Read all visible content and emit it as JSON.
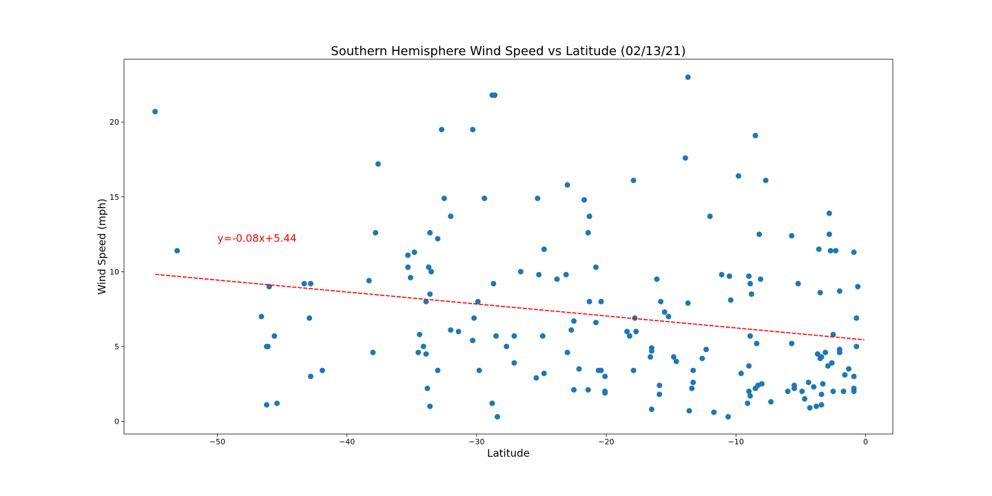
{
  "chart_data": {
    "type": "scatter",
    "title": "Southern Hemisphere Wind Speed vs Latitude (02/13/21)",
    "xlabel": "Latitude",
    "ylabel": "Wind Speed (mph)",
    "xlim": [
      -57.2,
      2.1
    ],
    "ylim": [
      -0.85,
      24.2
    ],
    "xticks": [
      -50,
      -40,
      -30,
      -20,
      -10,
      0
    ],
    "yticks": [
      0,
      5,
      10,
      15,
      20
    ],
    "grid": false,
    "marker_color": "#1f77b4",
    "regression": {
      "slope": -0.08,
      "intercept": 5.44,
      "x_range": [
        -54.8,
        -0.1
      ],
      "color": "#ff0000",
      "style": "dashed",
      "equation": "y=-0.08x+5.44",
      "equation_at": [
        -50,
        12
      ]
    },
    "points": [
      [
        -54.8,
        20.7
      ],
      [
        -53.1,
        11.4
      ],
      [
        -46.6,
        7.0
      ],
      [
        -46.2,
        5.0
      ],
      [
        -46.0,
        9.0
      ],
      [
        -46.1,
        5.0
      ],
      [
        -45.6,
        5.7
      ],
      [
        -46.2,
        1.1
      ],
      [
        -45.4,
        1.2
      ],
      [
        -43.3,
        9.2
      ],
      [
        -42.8,
        9.2
      ],
      [
        -42.9,
        6.9
      ],
      [
        -42.8,
        3.0
      ],
      [
        -41.9,
        3.4
      ],
      [
        -38.3,
        9.4
      ],
      [
        -38.0,
        4.6
      ],
      [
        -37.8,
        12.6
      ],
      [
        -37.6,
        17.2
      ],
      [
        -35.3,
        11.1
      ],
      [
        -35.3,
        10.3
      ],
      [
        -35.1,
        9.6
      ],
      [
        -34.8,
        11.3
      ],
      [
        -34.4,
        5.8
      ],
      [
        -34.5,
        4.6
      ],
      [
        -34.1,
        5.0
      ],
      [
        -33.9,
        4.5
      ],
      [
        -33.9,
        8.0
      ],
      [
        -33.7,
        10.3
      ],
      [
        -33.6,
        12.6
      ],
      [
        -33.6,
        8.5
      ],
      [
        -33.5,
        10.0
      ],
      [
        -33.8,
        2.2
      ],
      [
        -33.6,
        1.0
      ],
      [
        -33.0,
        12.2
      ],
      [
        -33.0,
        3.4
      ],
      [
        -32.7,
        19.5
      ],
      [
        -32.5,
        14.9
      ],
      [
        -32.0,
        13.7
      ],
      [
        -32.0,
        6.1
      ],
      [
        -31.4,
        6.0
      ],
      [
        -30.3,
        19.5
      ],
      [
        -30.2,
        6.9
      ],
      [
        -30.3,
        5.4
      ],
      [
        -29.9,
        8.0
      ],
      [
        -29.8,
        3.4
      ],
      [
        -29.4,
        14.9
      ],
      [
        -28.8,
        21.8
      ],
      [
        -28.6,
        21.8
      ],
      [
        -28.7,
        9.2
      ],
      [
        -28.5,
        5.7
      ],
      [
        -28.8,
        1.2
      ],
      [
        -28.4,
        0.3
      ],
      [
        -27.7,
        5.0
      ],
      [
        -27.1,
        5.7
      ],
      [
        -27.1,
        3.9
      ],
      [
        -26.6,
        10.0
      ],
      [
        -25.3,
        14.9
      ],
      [
        -25.2,
        9.8
      ],
      [
        -24.8,
        11.5
      ],
      [
        -24.9,
        5.7
      ],
      [
        -24.8,
        3.2
      ],
      [
        -25.4,
        2.9
      ],
      [
        -23.8,
        9.5
      ],
      [
        -23.0,
        15.8
      ],
      [
        -23.1,
        9.8
      ],
      [
        -22.7,
        6.1
      ],
      [
        -22.5,
        6.7
      ],
      [
        -23.0,
        4.6
      ],
      [
        -22.5,
        2.1
      ],
      [
        -22.1,
        3.5
      ],
      [
        -21.7,
        14.8
      ],
      [
        -21.3,
        13.7
      ],
      [
        -21.4,
        12.6
      ],
      [
        -21.3,
        8.0
      ],
      [
        -20.8,
        10.3
      ],
      [
        -20.8,
        6.6
      ],
      [
        -20.6,
        3.4
      ],
      [
        -20.4,
        3.4
      ],
      [
        -20.4,
        8.0
      ],
      [
        -20.1,
        3.0
      ],
      [
        -21.4,
        2.1
      ],
      [
        -20.1,
        2.0
      ],
      [
        -20.1,
        1.9
      ],
      [
        -18.4,
        6.0
      ],
      [
        -18.2,
        5.7
      ],
      [
        -17.9,
        16.1
      ],
      [
        -17.8,
        6.9
      ],
      [
        -17.7,
        6.0
      ],
      [
        -17.9,
        3.4
      ],
      [
        -16.6,
        4.3
      ],
      [
        -16.5,
        4.9
      ],
      [
        -16.5,
        4.7
      ],
      [
        -16.1,
        9.5
      ],
      [
        -15.8,
        8.0
      ],
      [
        -15.5,
        7.3
      ],
      [
        -15.2,
        7.0
      ],
      [
        -15.9,
        2.4
      ],
      [
        -15.9,
        1.8
      ],
      [
        -16.5,
        0.8
      ],
      [
        -14.8,
        4.3
      ],
      [
        -14.6,
        4.0
      ],
      [
        -13.7,
        23.0
      ],
      [
        -13.9,
        17.6
      ],
      [
        -13.7,
        7.9
      ],
      [
        -13.3,
        3.4
      ],
      [
        -13.3,
        2.6
      ],
      [
        -13.4,
        2.2
      ],
      [
        -13.6,
        0.7
      ],
      [
        -12.6,
        4.2
      ],
      [
        -12.3,
        4.8
      ],
      [
        -12.0,
        13.7
      ],
      [
        -11.7,
        0.6
      ],
      [
        -11.1,
        9.8
      ],
      [
        -10.5,
        9.7
      ],
      [
        -10.4,
        8.1
      ],
      [
        -10.6,
        0.3
      ],
      [
        -9.8,
        16.4
      ],
      [
        -9.6,
        3.2
      ],
      [
        -9.0,
        9.7
      ],
      [
        -8.9,
        9.2
      ],
      [
        -8.8,
        8.5
      ],
      [
        -8.9,
        5.7
      ],
      [
        -9.0,
        3.7
      ],
      [
        -9.0,
        2.0
      ],
      [
        -8.9,
        1.7
      ],
      [
        -9.1,
        1.2
      ],
      [
        -8.5,
        19.1
      ],
      [
        -8.4,
        5.2
      ],
      [
        -8.2,
        12.5
      ],
      [
        -8.1,
        9.5
      ],
      [
        -8.0,
        2.5
      ],
      [
        -8.3,
        2.4
      ],
      [
        -8.5,
        2.2
      ],
      [
        -7.7,
        16.1
      ],
      [
        -7.3,
        1.3
      ],
      [
        -6.0,
        2.0
      ],
      [
        -5.7,
        12.4
      ],
      [
        -5.7,
        5.2
      ],
      [
        -5.5,
        2.4
      ],
      [
        -5.2,
        9.2
      ],
      [
        -4.9,
        2.0
      ],
      [
        -5.5,
        2.2
      ],
      [
        -4.7,
        1.5
      ],
      [
        -4.4,
        2.6
      ],
      [
        -4.3,
        0.9
      ],
      [
        -4.0,
        2.3
      ],
      [
        -3.7,
        4.5
      ],
      [
        -3.6,
        11.5
      ],
      [
        -3.5,
        8.6
      ],
      [
        -3.5,
        4.2
      ],
      [
        -3.4,
        4.3
      ],
      [
        -3.3,
        2.5
      ],
      [
        -3.4,
        1.8
      ],
      [
        -3.8,
        1.0
      ],
      [
        -3.4,
        1.1
      ],
      [
        -3.1,
        4.6
      ],
      [
        -2.9,
        3.7
      ],
      [
        -2.8,
        13.9
      ],
      [
        -2.8,
        12.5
      ],
      [
        -2.7,
        11.4
      ],
      [
        -2.5,
        5.8
      ],
      [
        -2.6,
        3.9
      ],
      [
        -2.5,
        2.0
      ],
      [
        -2.3,
        11.4
      ],
      [
        -2.0,
        8.7
      ],
      [
        -2.0,
        4.8
      ],
      [
        -2.0,
        4.6
      ],
      [
        -1.7,
        2.0
      ],
      [
        -1.6,
        3.1
      ],
      [
        -1.3,
        3.5
      ],
      [
        -0.9,
        11.3
      ],
      [
        -0.9,
        3.0
      ],
      [
        -0.9,
        2.2
      ],
      [
        -0.9,
        2.0
      ],
      [
        -0.7,
        6.9
      ],
      [
        -0.7,
        5.0
      ],
      [
        -0.6,
        9.0
      ]
    ]
  }
}
